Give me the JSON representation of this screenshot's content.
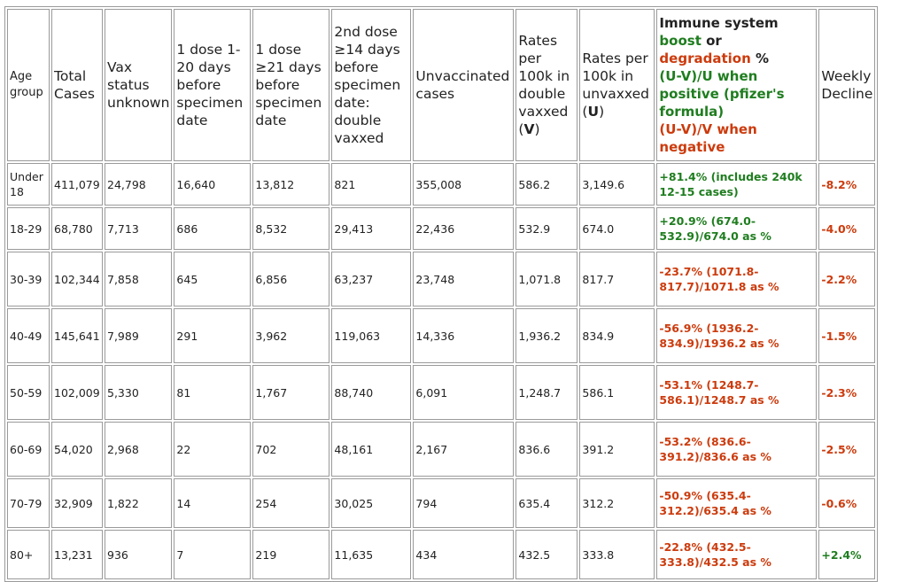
{
  "headers": {
    "age": "Age group",
    "total": "Total Cases",
    "vax_unknown": "Vax status unknown",
    "dose1_early": "1 dose 1-20 days before specimen date",
    "dose1_late": "1 dose ≥21 days before specimen date",
    "dose2": "2nd dose ≥14 days before specimen date: double vaxxed",
    "unvax": "Unvaccinated cases",
    "rate_v": "Rates per 100k in double vaxxed (",
    "rate_v_letter": "V",
    "rate_v_close": ")",
    "rate_u": "Rates per 100k in unvaxxed (",
    "rate_u_letter": "U",
    "rate_u_close": ")",
    "immune_title": "Immune system",
    "immune_boost": "boost",
    "immune_or": " or",
    "immune_degradation": "degradation",
    "immune_pct": " %",
    "immune_formula": "(U-V)/U when positive (pfizer's formula)",
    "immune_formula_neg": "(U-V)/V when negative",
    "weekly": "Weekly Decline"
  },
  "colors": {
    "green": "#1f7d1f",
    "red": "#cc3b0d",
    "border": "#9a9a9a"
  },
  "rows": [
    {
      "age": "Under 18",
      "total": "411,079",
      "unknown": "24,798",
      "d1a": "16,640",
      "d1b": "13,812",
      "d2": "821",
      "unvax": "355,008",
      "rv": "586.2",
      "ru": "3,149.6",
      "immune": "+81.4% (includes 240k 12-15 cases)",
      "immune_color": "green",
      "decline": "-8.2%",
      "decline_color": "red"
    },
    {
      "age": "18-29",
      "total": "68,780",
      "unknown": "7,713",
      "d1a": "686",
      "d1b": "8,532",
      "d2": "29,413",
      "unvax": "22,436",
      "rv": "532.9",
      "ru": "674.0",
      "immune": "+20.9% (674.0-532.9)/674.0 as %",
      "immune_color": "green",
      "decline": "-4.0%",
      "decline_color": "red"
    },
    {
      "age": "30-39",
      "total": "102,344",
      "unknown": "7,858",
      "d1a": "645",
      "d1b": "6,856",
      "d2": "63,237",
      "unvax": "23,748",
      "rv": "1,071.8",
      "ru": "817.7",
      "immune": "-23.7% (1071.8-817.7)/1071.8 as %",
      "immune_color": "red",
      "decline": "-2.2%",
      "decline_color": "red"
    },
    {
      "age": "40-49",
      "total": "145,641",
      "unknown": "7,989",
      "d1a": "291",
      "d1b": "3,962",
      "d2": "119,063",
      "unvax": "14,336",
      "rv": "1,936.2",
      "ru": "834.9",
      "immune": "-56.9% (1936.2-834.9)/1936.2 as %",
      "immune_color": "red",
      "decline": "-1.5%",
      "decline_color": "red"
    },
    {
      "age": "50-59",
      "total": "102,009",
      "unknown": "5,330",
      "d1a": "81",
      "d1b": "1,767",
      "d2": "88,740",
      "unvax": "6,091",
      "rv": "1,248.7",
      "ru": "586.1",
      "immune": "-53.1% (1248.7-586.1)/1248.7 as %",
      "immune_color": "red",
      "decline": "-2.3%",
      "decline_color": "red"
    },
    {
      "age": "60-69",
      "total": "54,020",
      "unknown": "2,968",
      "d1a": "22",
      "d1b": "702",
      "d2": "48,161",
      "unvax": "2,167",
      "rv": "836.6",
      "ru": "391.2",
      "immune": "-53.2% (836.6-391.2)/836.6 as %",
      "immune_color": "red",
      "decline": "-2.5%",
      "decline_color": "red"
    },
    {
      "age": "70-79",
      "total": "32,909",
      "unknown": "1,822",
      "d1a": "14",
      "d1b": "254",
      "d2": "30,025",
      "unvax": "794",
      "rv": "635.4",
      "ru": "312.2",
      "immune": "-50.9% (635.4-312.2)/635.4 as %",
      "immune_color": "red",
      "decline": "-0.6%",
      "decline_color": "red"
    },
    {
      "age": "80+",
      "total": "13,231",
      "unknown": "936",
      "d1a": "7",
      "d1b": "219",
      "d2": "11,635",
      "unvax": "434",
      "rv": "432.5",
      "ru": "333.8",
      "immune": "-22.8% (432.5-333.8)/432.5 as %",
      "immune_color": "red",
      "decline": "+2.4%",
      "decline_color": "green"
    }
  ]
}
